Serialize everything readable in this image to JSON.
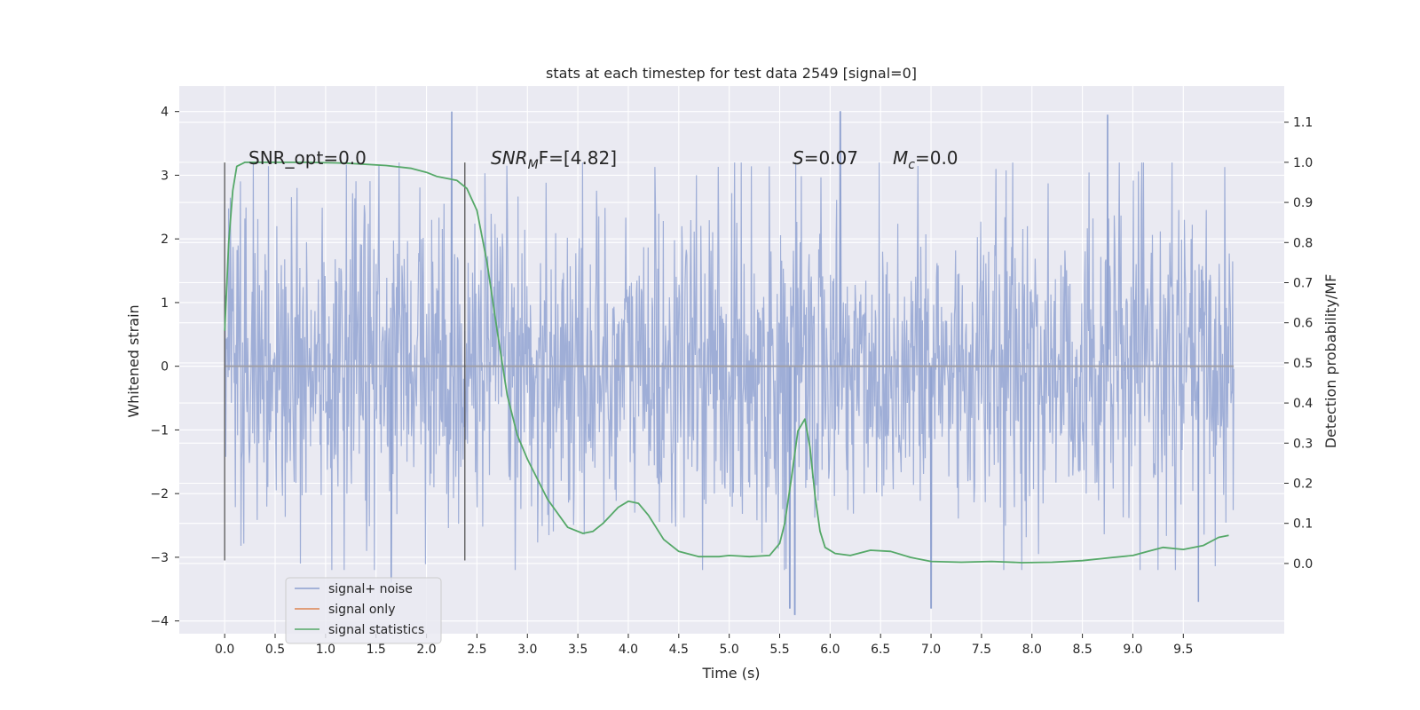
{
  "chart_data": {
    "type": "line",
    "title": "stats at each timestep for test data 2549 [signal=0]",
    "xlabel": "Time (s)",
    "ylabel": "Whitened strain",
    "y2label": "Detection probability/MF",
    "xlim": [
      -0.45,
      10.5
    ],
    "ylim": [
      -4.2,
      4.4
    ],
    "y2lim": [
      -0.175,
      1.19
    ],
    "x_ticks": [
      "0.0",
      "0.5",
      "1.0",
      "1.5",
      "2.0",
      "2.5",
      "3.0",
      "3.5",
      "4.0",
      "4.5",
      "5.0",
      "5.5",
      "6.0",
      "6.5",
      "7.0",
      "7.5",
      "8.0",
      "8.5",
      "9.0",
      "9.5"
    ],
    "x_tick_values": [
      0,
      0.5,
      1,
      1.5,
      2,
      2.5,
      3,
      3.5,
      4,
      4.5,
      5,
      5.5,
      6,
      6.5,
      7,
      7.5,
      8,
      8.5,
      9,
      9.5
    ],
    "y_ticks": [
      "−4",
      "−3",
      "−2",
      "−1",
      "0",
      "1",
      "2",
      "3",
      "4"
    ],
    "y_tick_values": [
      -4,
      -3,
      -2,
      -1,
      0,
      1,
      2,
      3,
      4
    ],
    "y2_ticks": [
      "0.0",
      "0.1",
      "0.2",
      "0.3",
      "0.4",
      "0.5",
      "0.6",
      "0.7",
      "0.8",
      "0.9",
      "1.0",
      "1.1"
    ],
    "y2_tick_values": [
      0,
      0.1,
      0.2,
      0.3,
      0.4,
      0.5,
      0.6,
      0.7,
      0.8,
      0.9,
      1.0,
      1.1
    ],
    "grid": true,
    "legend_position": "lower-left",
    "series": [
      {
        "name": "signal+ noise",
        "color": "#8c9fcf",
        "axis": "left",
        "style": "dense noise band",
        "x_range": [
          0,
          10
        ],
        "typical_range": [
          -2,
          2
        ],
        "peak_values": [
          {
            "x": 2.25,
            "y": 4.0
          },
          {
            "x": 6.1,
            "y": 4.0
          },
          {
            "x": 8.75,
            "y": 3.95
          },
          {
            "x": 5.6,
            "y": -3.8
          },
          {
            "x": 5.65,
            "y": -3.9
          },
          {
            "x": 7.0,
            "y": -3.8
          },
          {
            "x": 9.65,
            "y": -3.7
          },
          {
            "x": 1.65,
            "y": -3.4
          }
        ]
      },
      {
        "name": "signal only",
        "color": "#dd8452",
        "axis": "left",
        "x": [
          0,
          10
        ],
        "y": [
          0,
          0
        ]
      },
      {
        "name": "signal statistics",
        "color": "#55a868",
        "axis": "right",
        "x": [
          0.0,
          0.04,
          0.08,
          0.12,
          0.2,
          0.35,
          0.5,
          0.8,
          1.2,
          1.6,
          1.85,
          2.0,
          2.1,
          2.2,
          2.3,
          2.4,
          2.5,
          2.6,
          2.7,
          2.8,
          2.9,
          3.0,
          3.2,
          3.4,
          3.55,
          3.65,
          3.75,
          3.9,
          4.0,
          4.1,
          4.2,
          4.35,
          4.5,
          4.7,
          4.9,
          5.0,
          5.2,
          5.4,
          5.5,
          5.55,
          5.62,
          5.68,
          5.75,
          5.8,
          5.85,
          5.9,
          5.95,
          6.05,
          6.2,
          6.4,
          6.6,
          6.8,
          7.0,
          7.3,
          7.6,
          7.9,
          8.2,
          8.5,
          8.8,
          9.0,
          9.15,
          9.3,
          9.5,
          9.7,
          9.85,
          9.95
        ],
        "y": [
          0.58,
          0.8,
          0.93,
          0.99,
          1.0,
          1.0,
          1.0,
          1.0,
          0.998,
          0.992,
          0.985,
          0.975,
          0.965,
          0.96,
          0.955,
          0.935,
          0.88,
          0.75,
          0.58,
          0.42,
          0.32,
          0.26,
          0.16,
          0.09,
          0.075,
          0.08,
          0.1,
          0.14,
          0.155,
          0.15,
          0.12,
          0.06,
          0.03,
          0.017,
          0.017,
          0.02,
          0.017,
          0.02,
          0.05,
          0.1,
          0.22,
          0.33,
          0.36,
          0.29,
          0.17,
          0.08,
          0.04,
          0.025,
          0.02,
          0.033,
          0.03,
          0.015,
          0.005,
          0.003,
          0.005,
          0.002,
          0.003,
          0.007,
          0.015,
          0.02,
          0.03,
          0.04,
          0.035,
          0.045,
          0.065,
          0.07
        ]
      }
    ],
    "vertical_lines": [
      {
        "x": 0.0,
        "y_range": [
          -3.05,
          3.2
        ]
      },
      {
        "x": 2.38,
        "y_range": [
          -3.05,
          3.2
        ]
      }
    ],
    "annotations": {
      "snr_opt": "SNR_opt=0.0",
      "snr_mf_name": "SNR",
      "snr_mf_sub": "M",
      "snr_mf_rest": "F=[4.82]",
      "s_name": "S",
      "s_value": "=0.07",
      "mc_name": "M",
      "mc_sub": "c",
      "mc_value": "=0.0"
    }
  },
  "colors": {
    "plot_background": "#eaeaf2",
    "grid": "#ffffff",
    "text": "#262626"
  }
}
